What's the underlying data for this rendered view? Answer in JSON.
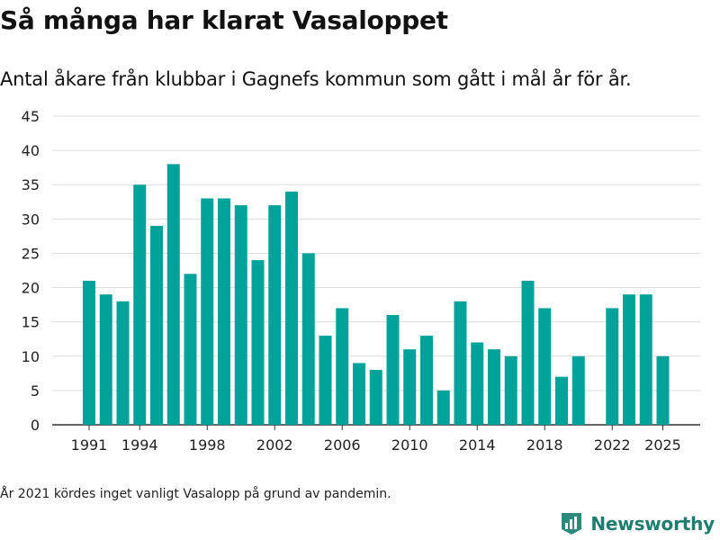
{
  "page": {
    "title": "Så många har klarat Vasaloppet",
    "subtitle": "Antal åkare från klubbar i Gagnefs kommun som gått i mål år för år.",
    "note": "År 2021 kördes inget vanligt Vasalopp på grund av pandemin.",
    "brand": "Newsworthy",
    "brand_icon": "newsworthy-logo-icon"
  },
  "colors": {
    "bar": "#00a39a",
    "grid": "#dddddd",
    "axis": "#333333",
    "text": "#222222",
    "brand": "#1f7c6f"
  },
  "chart_data": {
    "type": "bar",
    "title": "",
    "xlabel": "",
    "ylabel": "",
    "x": [
      1991,
      1992,
      1993,
      1994,
      1995,
      1996,
      1997,
      1998,
      1999,
      2000,
      2001,
      2002,
      2003,
      2004,
      2005,
      2006,
      2007,
      2008,
      2009,
      2010,
      2011,
      2012,
      2013,
      2014,
      2015,
      2016,
      2017,
      2018,
      2019,
      2020,
      2021,
      2022,
      2023,
      2024,
      2025
    ],
    "values": [
      21,
      19,
      18,
      35,
      29,
      38,
      22,
      33,
      33,
      32,
      24,
      32,
      34,
      25,
      13,
      17,
      9,
      8,
      16,
      11,
      13,
      5,
      18,
      12,
      11,
      10,
      21,
      17,
      7,
      10,
      null,
      17,
      19,
      19,
      10
    ],
    "x_ticks": [
      "1991",
      "1994",
      "1998",
      "2002",
      "2006",
      "2010",
      "2014",
      "2018",
      "2022",
      "2025"
    ],
    "y_ticks": [
      "0",
      "5",
      "10",
      "15",
      "20",
      "25",
      "30",
      "35",
      "40",
      "45"
    ],
    "ylim": [
      0,
      45
    ],
    "grid": true,
    "legend": false
  }
}
